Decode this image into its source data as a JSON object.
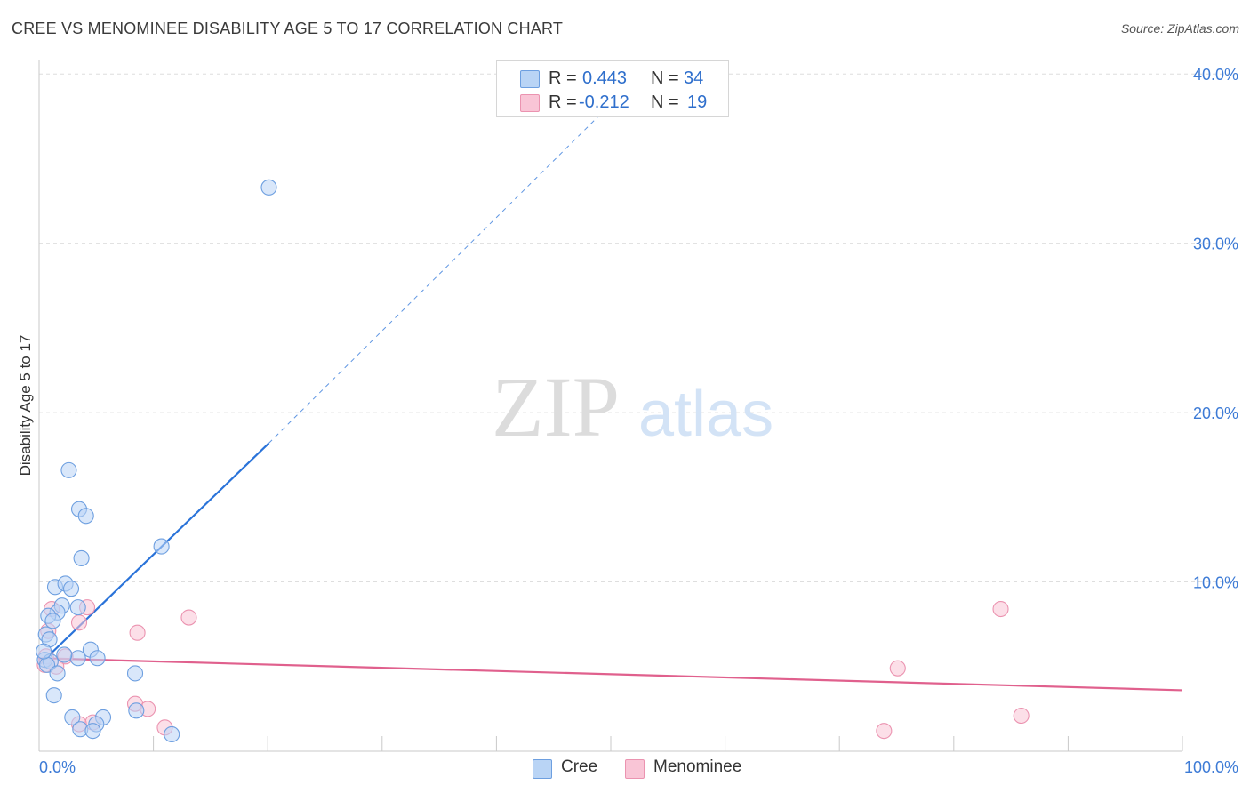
{
  "header": {
    "title": "CREE VS MENOMINEE DISABILITY AGE 5 TO 17 CORRELATION CHART",
    "source": "Source: ZipAtlas.com"
  },
  "watermark": {
    "zip": "ZIP",
    "atlas": "atlas"
  },
  "legend": {
    "rows": [
      {
        "r_label": "R =",
        "r_value": "0.443",
        "n_label": "N =",
        "n_value": "34"
      },
      {
        "r_label": "R =",
        "r_value": "-0.212",
        "n_label": "N =",
        "n_value": "19"
      }
    ]
  },
  "bottom_legend": {
    "cree": "Cree",
    "menominee": "Menominee"
  },
  "colors": {
    "cree_fill": "#b9d4f5",
    "cree_stroke": "#6d9fe0",
    "cree_line": "#2a73d9",
    "menominee_fill": "#f9c5d6",
    "menominee_stroke": "#eb93b0",
    "menominee_line": "#e0608d",
    "tick_label": "#3d7bd6",
    "grid": "#dedede"
  },
  "chart_data": {
    "type": "scatter",
    "title": "CREE VS MENOMINEE DISABILITY AGE 5 TO 17 CORRELATION CHART",
    "xlabel": "",
    "ylabel": "Disability Age 5 to 17",
    "xlim": [
      0,
      100
    ],
    "ylim": [
      0,
      40.8
    ],
    "x_tick_labels": [
      {
        "value": 0,
        "label": "0.0%"
      },
      {
        "value": 100,
        "label": "100.0%"
      }
    ],
    "y_tick_labels": [
      {
        "value": 10,
        "label": "10.0%"
      },
      {
        "value": 20,
        "label": "20.0%"
      },
      {
        "value": 30,
        "label": "30.0%"
      },
      {
        "value": 40,
        "label": "40.0%"
      }
    ],
    "y_gridlines": [
      10,
      20,
      30,
      40
    ],
    "legend_position": "top-center",
    "series": [
      {
        "name": "Cree",
        "points": [
          [
            20.1,
            33.3
          ],
          [
            2.6,
            16.6
          ],
          [
            3.5,
            14.3
          ],
          [
            4.1,
            13.9
          ],
          [
            10.7,
            12.1
          ],
          [
            3.7,
            11.4
          ],
          [
            1.4,
            9.7
          ],
          [
            2.3,
            9.9
          ],
          [
            2.8,
            9.6
          ],
          [
            3.4,
            8.5
          ],
          [
            2.0,
            8.6
          ],
          [
            1.6,
            8.2
          ],
          [
            0.8,
            8.0
          ],
          [
            1.2,
            7.7
          ],
          [
            0.6,
            6.9
          ],
          [
            0.9,
            6.6
          ],
          [
            4.5,
            6.0
          ],
          [
            0.5,
            5.4
          ],
          [
            3.4,
            5.5
          ],
          [
            5.1,
            5.5
          ],
          [
            1.0,
            5.3
          ],
          [
            2.2,
            5.7
          ],
          [
            0.7,
            5.1
          ],
          [
            1.6,
            4.6
          ],
          [
            8.4,
            4.6
          ],
          [
            1.3,
            3.3
          ],
          [
            2.9,
            2.0
          ],
          [
            5.6,
            2.0
          ],
          [
            8.5,
            2.4
          ],
          [
            3.6,
            1.3
          ],
          [
            5.0,
            1.6
          ],
          [
            4.7,
            1.2
          ],
          [
            11.6,
            1.0
          ],
          [
            0.4,
            5.9
          ]
        ],
        "trend": {
          "x": [
            0,
            20.1
          ],
          "y": [
            5.1,
            18.2
          ]
        },
        "trend_extrapolated": {
          "x": [
            20.1,
            52.5
          ],
          "y": [
            18.2,
            39.9
          ]
        }
      },
      {
        "name": "Menominee",
        "points": [
          [
            1.1,
            8.4
          ],
          [
            4.2,
            8.5
          ],
          [
            3.5,
            7.6
          ],
          [
            13.1,
            7.9
          ],
          [
            8.6,
            7.0
          ],
          [
            0.6,
            5.6
          ],
          [
            2.3,
            5.6
          ],
          [
            1.5,
            5.0
          ],
          [
            0.5,
            5.1
          ],
          [
            84.1,
            8.4
          ],
          [
            75.1,
            4.9
          ],
          [
            8.4,
            2.8
          ],
          [
            9.5,
            2.5
          ],
          [
            3.5,
            1.6
          ],
          [
            4.7,
            1.7
          ],
          [
            11.0,
            1.4
          ],
          [
            85.9,
            2.1
          ],
          [
            73.9,
            1.2
          ],
          [
            0.8,
            7.1
          ]
        ],
        "trend": {
          "x": [
            0,
            100
          ],
          "y": [
            5.5,
            3.6
          ]
        }
      }
    ]
  }
}
